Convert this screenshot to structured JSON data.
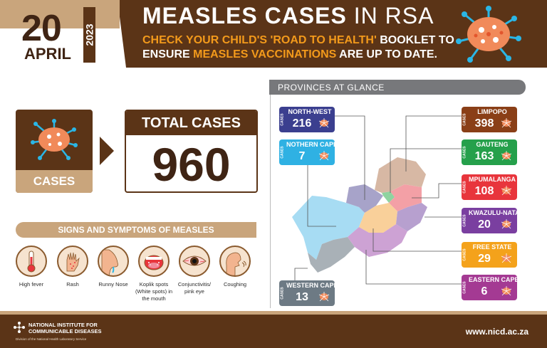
{
  "header": {
    "day": "20",
    "month": "APRIL",
    "year": "2023",
    "title_bold": "MEASLES CASES",
    "title_light": "IN RSA",
    "subtitle_line1_highlight": "CHECK YOUR CHILD'S 'ROAD TO HEALTH'",
    "subtitle_line1_rest": " BOOKLET TO",
    "subtitle_line2_start": "ENSURE ",
    "subtitle_line2_highlight": "MEASLES VACCINATIONS",
    "subtitle_line2_end": " ARE UP TO DATE.",
    "virus_icon": "virus-icon"
  },
  "summary": {
    "cases_label": "CASES",
    "total_label": "TOTAL CASES",
    "total_value": "960"
  },
  "signs": {
    "title": "SIGNS AND SYMPTOMS OF MEASLES",
    "items": [
      {
        "label": "High fever",
        "icon": "thermometer-icon"
      },
      {
        "label": "Rash",
        "icon": "hand-rash-icon"
      },
      {
        "label": "Runny Nose",
        "icon": "nose-icon"
      },
      {
        "label": "Koplik spots (White spots) in the mouth",
        "icon": "mouth-icon"
      },
      {
        "label": "Conjunctivitis/ pink eye",
        "icon": "eye-icon"
      },
      {
        "label": "Coughing",
        "icon": "cough-icon"
      }
    ]
  },
  "provinces": {
    "title": "PROVINCES AT GLANCE",
    "cases_tag": "CASES",
    "items": [
      {
        "name": "NORTH-WEST",
        "count": "216",
        "color": "#3b3f8f"
      },
      {
        "name": "NOTHERN CAPE",
        "count": "7",
        "color": "#2fb1e3"
      },
      {
        "name": "WESTERN CAPE",
        "count": "13",
        "color": "#6d7a84"
      },
      {
        "name": "LIMPOPO",
        "count": "398",
        "color": "#8a3f17"
      },
      {
        "name": "GAUTENG",
        "count": "163",
        "color": "#25a04b"
      },
      {
        "name": "MPUMALANGA",
        "count": "108",
        "color": "#e8353c"
      },
      {
        "name": "KWAZULU-NATAL",
        "count": "20",
        "color": "#7a3fa0"
      },
      {
        "name": "FREE STATE",
        "count": "29",
        "color": "#f4a21b"
      },
      {
        "name": "EASTERN CAPE",
        "count": "6",
        "color": "#a43a93"
      }
    ]
  },
  "footer": {
    "org_line1": "NATIONAL INSTITUTE FOR",
    "org_line2": "COMMUNICABLE DISEASES",
    "org_line3": "Division of the National Health Laboratory Service",
    "url": "www.nicd.ac.za"
  },
  "colors": {
    "brown": "#5b3417",
    "tan": "#c9a57c",
    "orange": "#f39a1b"
  }
}
